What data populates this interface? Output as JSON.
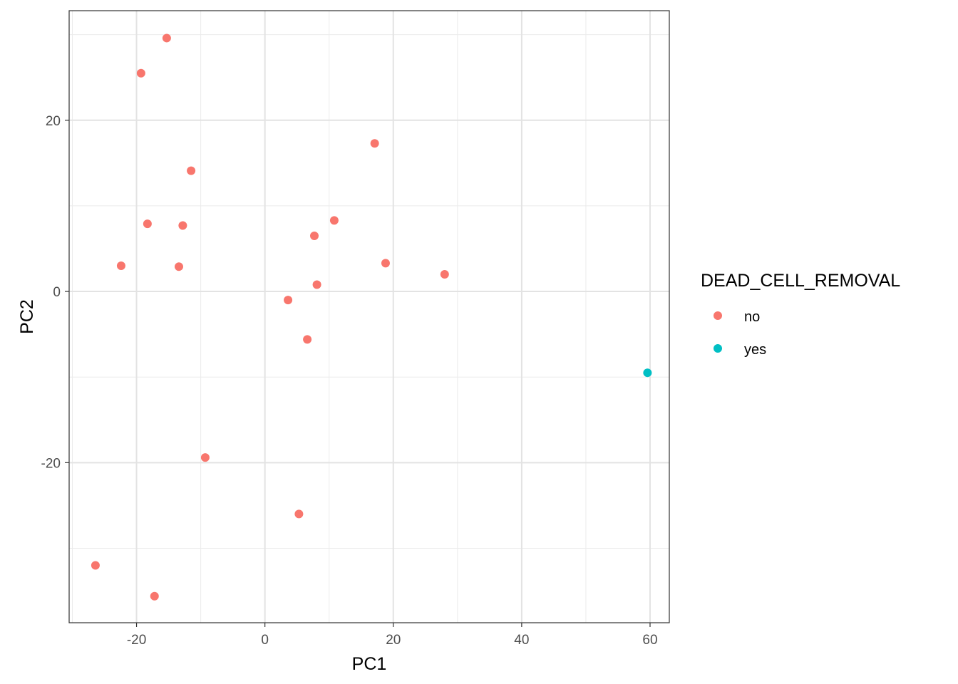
{
  "chart_data": {
    "type": "scatter",
    "title": "",
    "xlabel": "PC1",
    "ylabel": "PC2",
    "xlim": [
      -30.5,
      63
    ],
    "ylim": [
      -38.7,
      32.8
    ],
    "x_ticks": [
      -20,
      0,
      20,
      40,
      60
    ],
    "y_ticks": [
      -20,
      0,
      20
    ],
    "x_tick_labels": [
      "-20",
      "0",
      "20",
      "40",
      "60"
    ],
    "y_tick_labels": [
      "-20",
      "0",
      "20"
    ],
    "x_minor_breaks": [
      -30,
      -10,
      10,
      30,
      50
    ],
    "y_minor_breaks": [
      -30,
      -10,
      10,
      30
    ],
    "grid": true,
    "theme": "bw",
    "legend": {
      "title": "DEAD_CELL_REMOVAL",
      "position": "right",
      "entries": [
        {
          "label": "no",
          "color": "#F8766D"
        },
        {
          "label": "yes",
          "color": "#00BFC4"
        }
      ]
    },
    "series": [
      {
        "name": "no",
        "color": "#F8766D",
        "points": [
          {
            "x": -15.3,
            "y": 29.6
          },
          {
            "x": -19.3,
            "y": 25.5
          },
          {
            "x": 17.1,
            "y": 17.3
          },
          {
            "x": -11.5,
            "y": 14.1
          },
          {
            "x": 10.8,
            "y": 8.3
          },
          {
            "x": -18.3,
            "y": 7.9
          },
          {
            "x": -12.8,
            "y": 7.7
          },
          {
            "x": 7.7,
            "y": 6.5
          },
          {
            "x": 18.8,
            "y": 3.3
          },
          {
            "x": -22.4,
            "y": 3.0
          },
          {
            "x": -13.4,
            "y": 2.9
          },
          {
            "x": 28.0,
            "y": 2.0
          },
          {
            "x": 8.1,
            "y": 0.8
          },
          {
            "x": 3.6,
            "y": -1.0
          },
          {
            "x": 6.6,
            "y": -5.6
          },
          {
            "x": -9.3,
            "y": -19.4
          },
          {
            "x": 5.3,
            "y": -26.0
          },
          {
            "x": -26.4,
            "y": -32.0
          },
          {
            "x": -17.2,
            "y": -35.6
          }
        ]
      },
      {
        "name": "yes",
        "color": "#00BFC4",
        "points": [
          {
            "x": 59.6,
            "y": -9.5
          }
        ]
      }
    ]
  }
}
